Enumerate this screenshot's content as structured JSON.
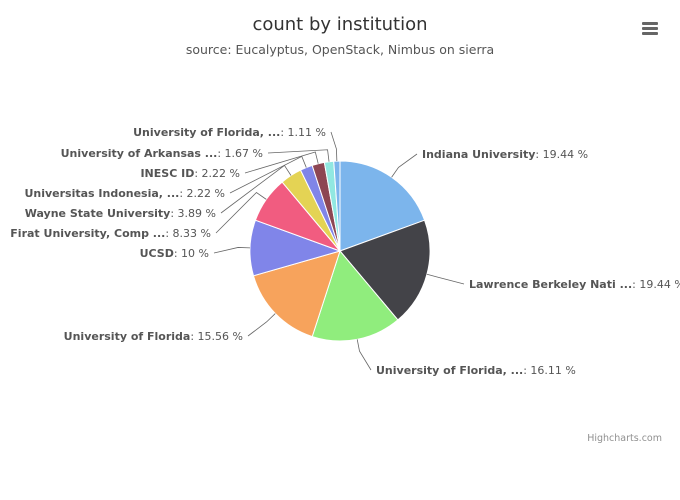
{
  "chart_data": {
    "type": "pie",
    "title": "count by institution",
    "subtitle": "source: Eucalyptus, OpenStack, Nimbus on sierra",
    "slices": [
      {
        "name": "Indiana University",
        "value": 19.44,
        "label": "19.44 %",
        "color": "#7cb5ec"
      },
      {
        "name": "Lawrence Berkeley Nati ...",
        "value": 19.44,
        "label": "19.44 %",
        "color": "#434348"
      },
      {
        "name": "University of Florida, ...",
        "value": 16.11,
        "label": "16.11 %",
        "color": "#90ed7d"
      },
      {
        "name": "University of Florida",
        "value": 15.56,
        "label": "15.56 %",
        "color": "#f7a35c"
      },
      {
        "name": "UCSD",
        "value": 10,
        "label": "10 %",
        "color": "#8085e9"
      },
      {
        "name": "Firat University, Comp ...",
        "value": 8.33,
        "label": "8.33 %",
        "color": "#f15c80"
      },
      {
        "name": "Wayne State University",
        "value": 3.89,
        "label": "3.89 %",
        "color": "#e4d354"
      },
      {
        "name": "Universitas Indonesia, ...",
        "value": 2.22,
        "label": "2.22 %",
        "color": "#8085e8"
      },
      {
        "name": "INESC ID",
        "value": 2.22,
        "label": "2.22 %",
        "color": "#8d4653"
      },
      {
        "name": "University of Arkansas ...",
        "value": 1.67,
        "label": "1.67 %",
        "color": "#91e8e1"
      },
      {
        "name": "University of Florida, ...",
        "value": 1.11,
        "label": "1.11 %",
        "color": "#7cb5ec"
      }
    ]
  },
  "credits": "Highcharts.com",
  "menu_icon": "hamburger-menu-icon"
}
